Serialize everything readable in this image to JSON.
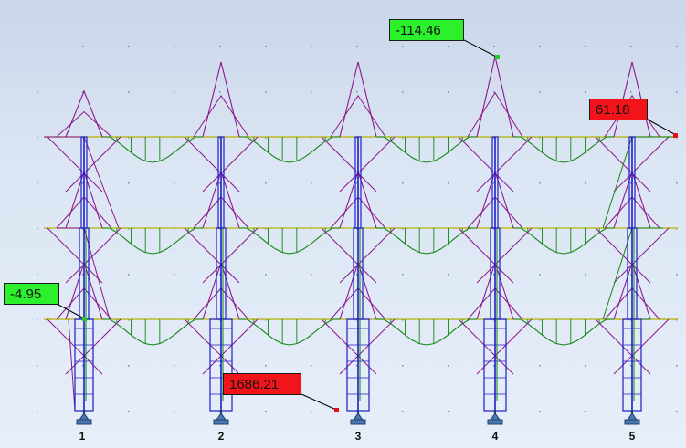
{
  "view": {
    "background_top": "#c9d6ea",
    "background_bottom": "#e6eef9"
  },
  "colors": {
    "beam_diagram": "#128712",
    "column_diagram": "#8c168c",
    "frame": "#1e1ec8",
    "beam_axis": "#b4b400",
    "callout_min": "#2bf02b",
    "callout_max": "#f2141b",
    "marker_min": "#22cc22",
    "marker_max": "#dd1111"
  },
  "icons": {
    "support": "fixed-support-icon"
  },
  "axes": {
    "labels": [
      "1",
      "2",
      "3",
      "4",
      "5"
    ]
  },
  "callouts": {
    "top_min": "-114.46",
    "right_max": "61.18",
    "left_min": "-4.95",
    "bottom_max": "1686.21"
  }
}
